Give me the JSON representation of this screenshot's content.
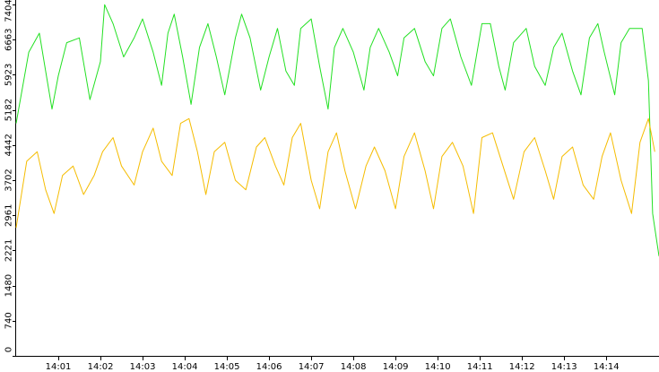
{
  "chart_data": {
    "type": "line",
    "title": "",
    "xlabel": "",
    "ylabel": "",
    "grid": false,
    "legend": "none",
    "xlim": [
      0,
      15.25
    ],
    "ylim": [
      0,
      7404
    ],
    "x_ticks": [
      {
        "value": 1,
        "label": "14:01"
      },
      {
        "value": 2,
        "label": "14:02"
      },
      {
        "value": 3,
        "label": "14:03"
      },
      {
        "value": 4,
        "label": "14:04"
      },
      {
        "value": 5,
        "label": "14:05"
      },
      {
        "value": 6,
        "label": "14:06"
      },
      {
        "value": 7,
        "label": "14:07"
      },
      {
        "value": 8,
        "label": "14:08"
      },
      {
        "value": 9,
        "label": "14:09"
      },
      {
        "value": 10,
        "label": "14:10"
      },
      {
        "value": 11,
        "label": "14:11"
      },
      {
        "value": 12,
        "label": "14:12"
      },
      {
        "value": 13,
        "label": "14:13"
      },
      {
        "value": 14,
        "label": "14:14"
      }
    ],
    "y_ticks": [
      {
        "value": 0,
        "label": "0"
      },
      {
        "value": 740,
        "label": "740"
      },
      {
        "value": 1480,
        "label": "1480"
      },
      {
        "value": 2221,
        "label": "2221"
      },
      {
        "value": 2961,
        "label": "2961"
      },
      {
        "value": 3702,
        "label": "3702"
      },
      {
        "value": 4442,
        "label": "4442"
      },
      {
        "value": 5182,
        "label": "5182"
      },
      {
        "value": 5923,
        "label": "5923"
      },
      {
        "value": 6663,
        "label": "6663"
      },
      {
        "value": 7404,
        "label": "7404"
      }
    ],
    "series": [
      {
        "color": "#22e022",
        "x": [
          0.0,
          0.3,
          0.55,
          0.7,
          0.85,
          1.0,
          1.2,
          1.5,
          1.75,
          2.0,
          2.1,
          2.3,
          2.55,
          2.8,
          3.0,
          3.25,
          3.45,
          3.6,
          3.75,
          3.95,
          4.15,
          4.35,
          4.55,
          4.75,
          4.95,
          5.2,
          5.35,
          5.55,
          5.8,
          6.0,
          6.2,
          6.4,
          6.6,
          6.75,
          7.0,
          7.2,
          7.4,
          7.55,
          7.75,
          8.0,
          8.25,
          8.4,
          8.6,
          8.85,
          9.05,
          9.2,
          9.45,
          9.7,
          9.9,
          10.1,
          10.3,
          10.55,
          10.8,
          11.05,
          11.25,
          11.45,
          11.6,
          11.8,
          12.1,
          12.3,
          12.55,
          12.75,
          12.95,
          13.2,
          13.4,
          13.6,
          13.8,
          13.95,
          14.2,
          14.35,
          14.55,
          14.85,
          15.0,
          15.1,
          15.25
        ],
        "values": [
          4900,
          6400,
          6800,
          6000,
          5200,
          5900,
          6600,
          6700,
          5400,
          6200,
          7400,
          7000,
          6300,
          6700,
          7100,
          6400,
          5700,
          6800,
          7200,
          6300,
          5300,
          6500,
          7000,
          6300,
          5500,
          6700,
          7200,
          6700,
          5600,
          6300,
          6900,
          6000,
          5700,
          6900,
          7100,
          6100,
          5200,
          6500,
          6900,
          6400,
          5600,
          6500,
          6900,
          6400,
          5900,
          6700,
          6900,
          6200,
          5900,
          6900,
          7100,
          6300,
          5700,
          7000,
          7000,
          6100,
          5600,
          6600,
          6900,
          6100,
          5700,
          6500,
          6800,
          6000,
          5500,
          6700,
          7000,
          6400,
          5500,
          6600,
          6900,
          6900,
          5800,
          3000,
          2100
        ]
      },
      {
        "color": "#f5bc00",
        "x": [
          0.0,
          0.25,
          0.5,
          0.7,
          0.9,
          1.1,
          1.35,
          1.6,
          1.85,
          2.05,
          2.3,
          2.5,
          2.8,
          3.0,
          3.25,
          3.45,
          3.7,
          3.9,
          4.1,
          4.3,
          4.5,
          4.7,
          4.95,
          5.2,
          5.45,
          5.7,
          5.9,
          6.15,
          6.35,
          6.55,
          6.75,
          7.0,
          7.2,
          7.4,
          7.6,
          7.8,
          8.05,
          8.3,
          8.5,
          8.75,
          9.0,
          9.2,
          9.45,
          9.7,
          9.9,
          10.1,
          10.35,
          10.6,
          10.85,
          11.05,
          11.3,
          11.55,
          11.8,
          12.05,
          12.3,
          12.55,
          12.75,
          12.95,
          13.2,
          13.45,
          13.7,
          13.9,
          14.1,
          14.35,
          14.6,
          14.8,
          15.0,
          15.15
        ],
        "values": [
          2700,
          4100,
          4300,
          3500,
          3000,
          3800,
          4000,
          3400,
          3800,
          4300,
          4600,
          4000,
          3600,
          4300,
          4800,
          4100,
          3800,
          4900,
          5000,
          4300,
          3400,
          4300,
          4500,
          3700,
          3500,
          4400,
          4600,
          4000,
          3600,
          4600,
          4900,
          3700,
          3100,
          4300,
          4700,
          3900,
          3100,
          4000,
          4400,
          3900,
          3100,
          4200,
          4700,
          3900,
          3100,
          4200,
          4500,
          4000,
          3000,
          4600,
          4700,
          4000,
          3300,
          4300,
          4600,
          3900,
          3300,
          4200,
          4400,
          3600,
          3300,
          4200,
          4700,
          3700,
          3000,
          4500,
          5000,
          4300
        ]
      }
    ]
  }
}
